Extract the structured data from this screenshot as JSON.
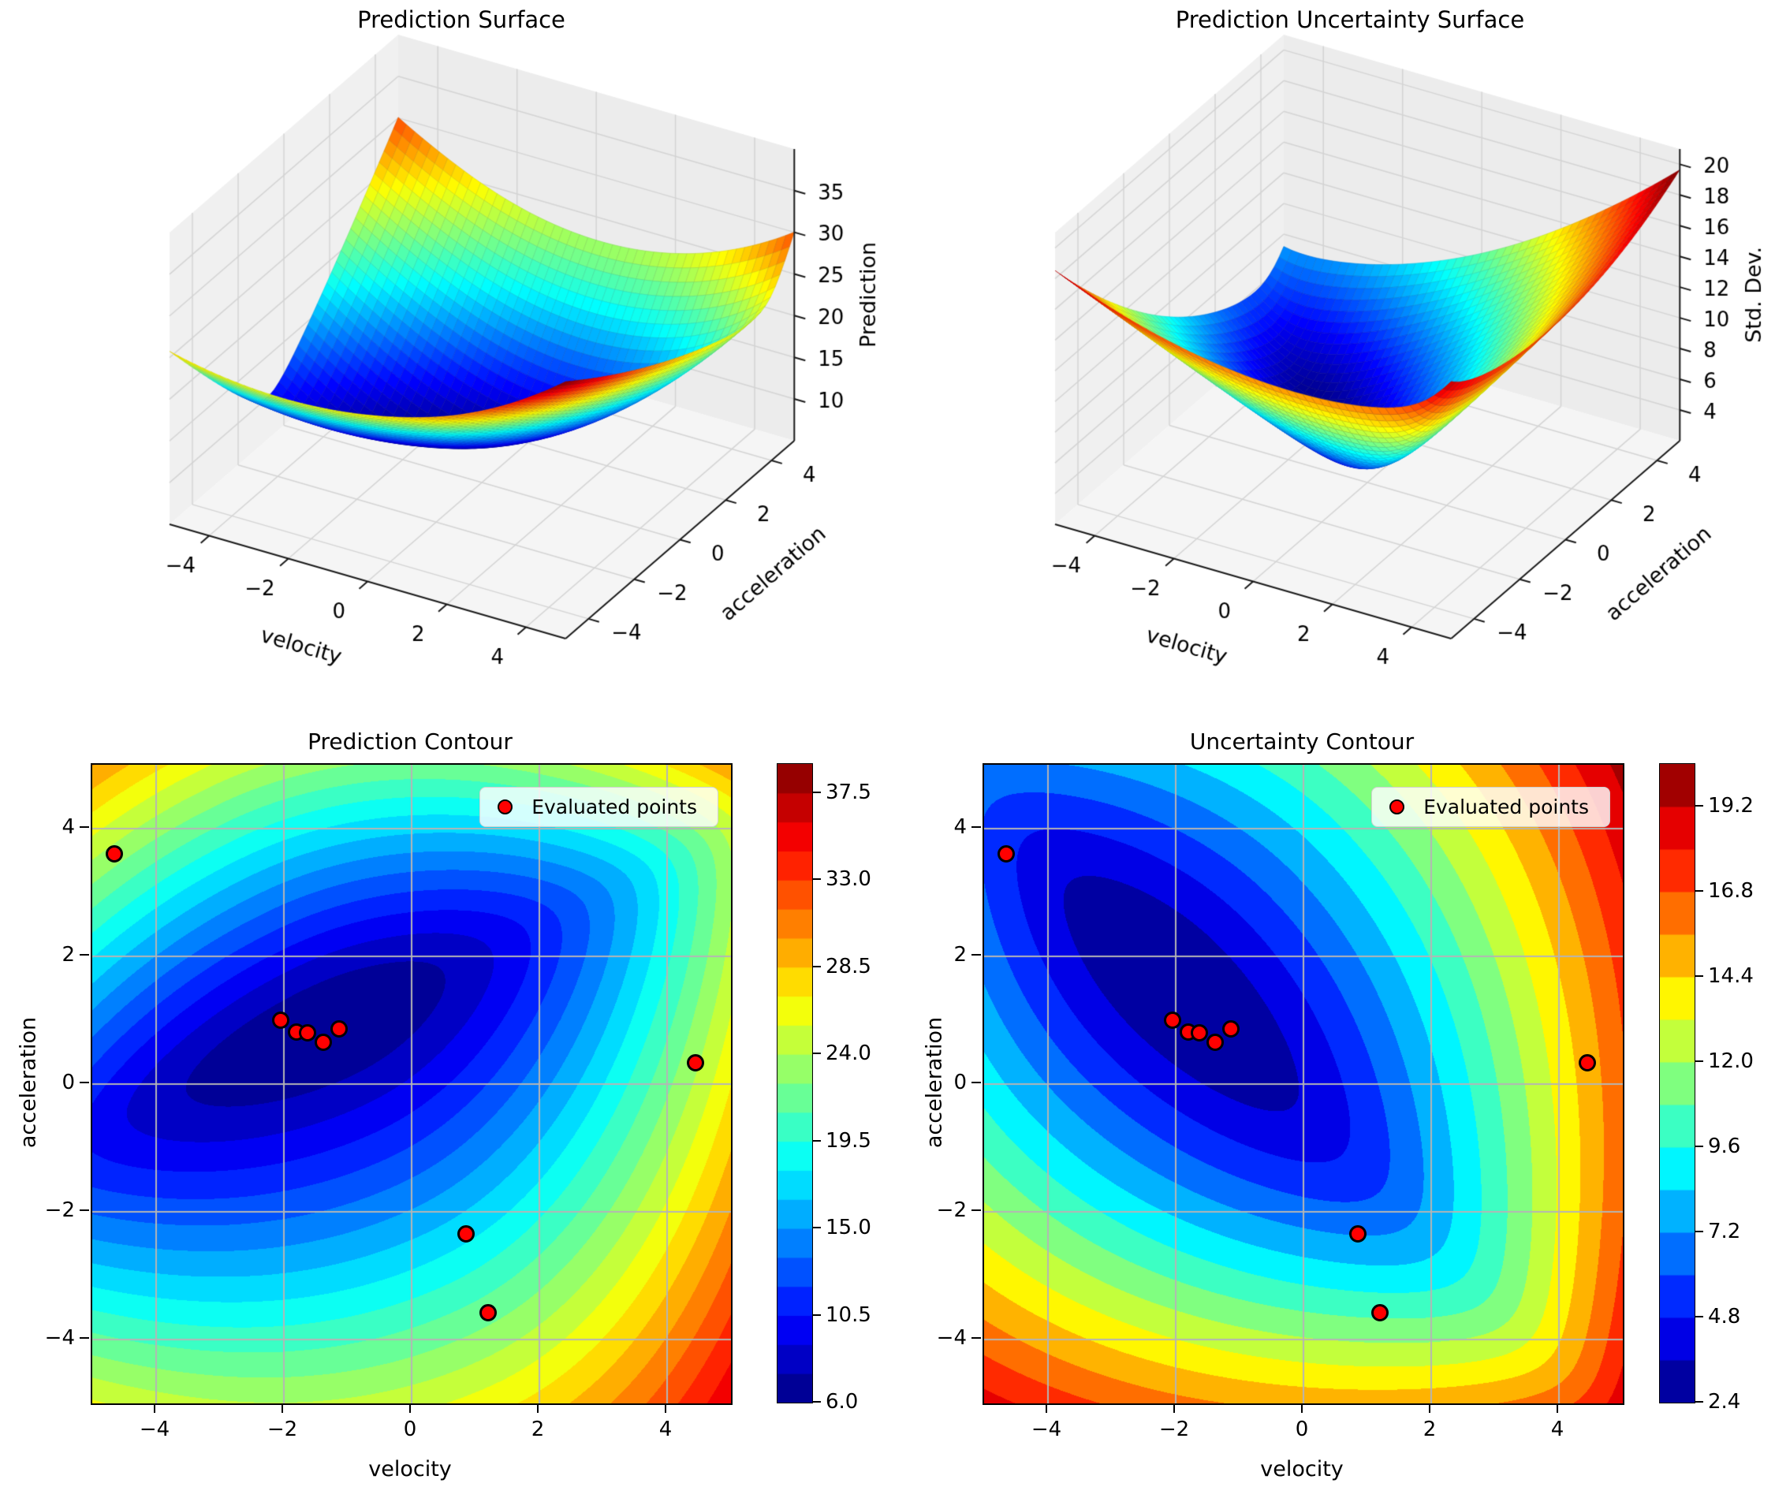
{
  "figure": {
    "background": "#ffffff"
  },
  "styles": {
    "point_fill": "#ff0000",
    "point_edge": "#000000",
    "grid_2d": "#b5b5b5",
    "pane_floor": "#f5f5f5",
    "pane_left": "#f0f0f0",
    "pane_right": "#ececec",
    "pane_grid": "#d4d4d4",
    "spine": "#1a1a1a",
    "text": "#000000"
  },
  "chart_data": [
    {
      "type": "surface3d",
      "title": "Prediction Surface",
      "xlabel": "velocity",
      "ylabel": "acceleration",
      "zlabel": "Prediction",
      "xlim": [
        -5,
        5
      ],
      "ylim": [
        -5,
        5
      ],
      "zlim": [
        5,
        40
      ],
      "x_ticks": [
        -4,
        -2,
        0,
        2,
        4
      ],
      "y_ticks": [
        -4,
        -2,
        0,
        2,
        4
      ],
      "z_ticks": [
        10,
        15,
        20,
        25,
        30,
        35
      ],
      "colormap": "jet",
      "surface_z_range": [
        6,
        36
      ],
      "field_model": {
        "base": 6.0,
        "center": [
          -1.3,
          0.9
        ],
        "theta_deg": 25,
        "a_pos": 0.38,
        "a_neg": 0.25,
        "b_pos": 5.0,
        "b_neg": 3.5
      }
    },
    {
      "type": "surface3d",
      "title": "Prediction Uncertainty Surface",
      "xlabel": "velocity",
      "ylabel": "acceleration",
      "zlabel": "Std. Dev.",
      "xlim": [
        -5,
        5
      ],
      "ylim": [
        -5,
        5
      ],
      "zlim": [
        2,
        21
      ],
      "x_ticks": [
        -4,
        -2,
        0,
        2,
        4
      ],
      "y_ticks": [
        -4,
        -2,
        0,
        2,
        4
      ],
      "z_ticks": [
        4,
        6,
        8,
        10,
        12,
        14,
        16,
        18,
        20
      ],
      "colormap": "jet",
      "surface_z_range": [
        2.4,
        20
      ],
      "field_model": {
        "base": 2.4,
        "center": [
          -2.0,
          1.5
        ],
        "theta_deg": 135,
        "a_pos": 0.217,
        "a_neg": 0.177,
        "b_pos": 2.46,
        "b_neg": 2.37
      }
    },
    {
      "type": "contourf",
      "title": "Prediction Contour",
      "xlabel": "velocity",
      "ylabel": "acceleration",
      "xlim": [
        -5,
        5
      ],
      "ylim": [
        -5,
        5
      ],
      "x_ticks": [
        -4,
        -2,
        0,
        2,
        4
      ],
      "y_ticks": [
        4,
        2,
        0,
        -2,
        -4
      ],
      "levels": {
        "min": 6.0,
        "max": 39.0,
        "step": 1.5
      },
      "colorbar_ticks": [
        6.0,
        10.5,
        15.0,
        19.5,
        24.0,
        28.5,
        33.0,
        37.5
      ],
      "colormap": "jet",
      "legend_label": "Evaluated points",
      "evaluated_points": [
        [
          -4.65,
          3.6
        ],
        [
          -2.05,
          1.0
        ],
        [
          -1.8,
          0.82
        ],
        [
          -1.63,
          0.8
        ],
        [
          -1.38,
          0.66
        ],
        [
          -1.13,
          0.87
        ],
        [
          4.45,
          0.33
        ],
        [
          0.85,
          -2.35
        ],
        [
          1.2,
          -3.58
        ]
      ],
      "field_model": {
        "base": 6.0,
        "center": [
          -1.3,
          0.9
        ],
        "theta_deg": 25,
        "a_pos": 0.38,
        "a_neg": 0.25,
        "b_pos": 5.0,
        "b_neg": 3.5
      }
    },
    {
      "type": "contourf",
      "title": "Uncertainty Contour",
      "xlabel": "velocity",
      "ylabel": "acceleration",
      "xlim": [
        -5,
        5
      ],
      "ylim": [
        -5,
        5
      ],
      "x_ticks": [
        -4,
        -2,
        0,
        2,
        4
      ],
      "y_ticks": [
        4,
        2,
        0,
        -2,
        -4
      ],
      "levels": {
        "min": 2.4,
        "max": 20.4,
        "step": 1.2
      },
      "colorbar_ticks": [
        2.4,
        4.8,
        7.2,
        9.6,
        12.0,
        14.4,
        16.8,
        19.2
      ],
      "colormap": "jet",
      "legend_label": "Evaluated points",
      "evaluated_points": [
        [
          -4.65,
          3.6
        ],
        [
          -2.05,
          1.0
        ],
        [
          -1.8,
          0.82
        ],
        [
          -1.63,
          0.8
        ],
        [
          -1.38,
          0.66
        ],
        [
          -1.13,
          0.87
        ],
        [
          4.45,
          0.33
        ],
        [
          0.85,
          -2.35
        ],
        [
          1.2,
          -3.58
        ]
      ],
      "field_model": {
        "base": 2.4,
        "center": [
          -2.0,
          1.5
        ],
        "theta_deg": 135,
        "a_pos": 0.217,
        "a_neg": 0.177,
        "b_pos": 2.46,
        "b_neg": 2.37
      }
    }
  ]
}
